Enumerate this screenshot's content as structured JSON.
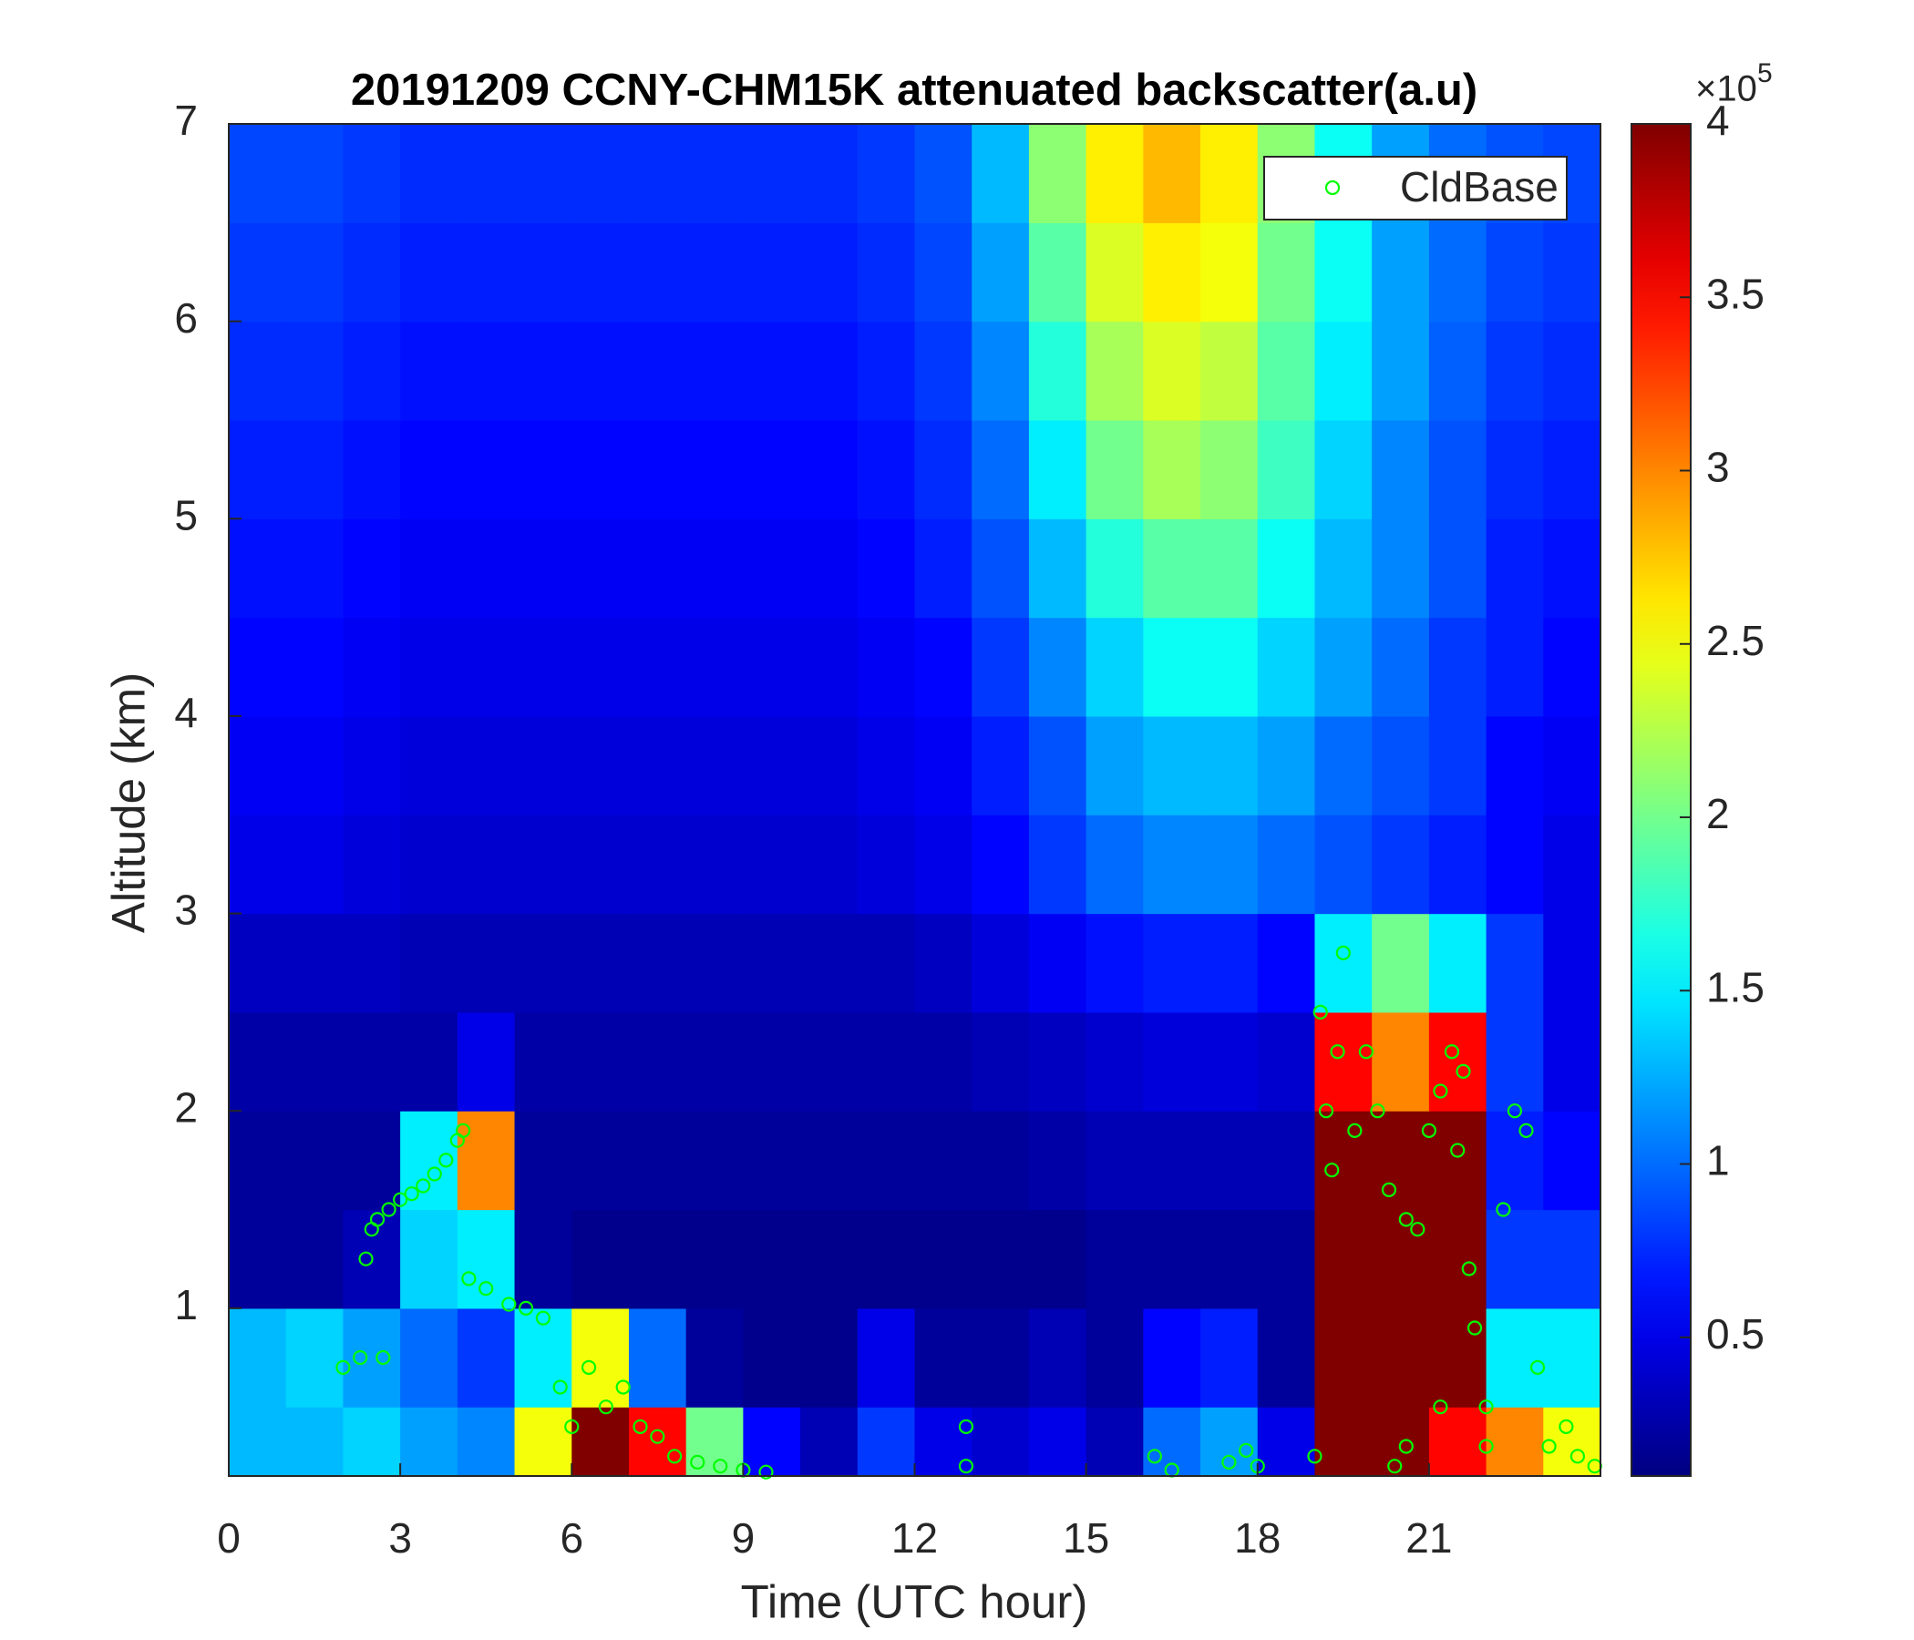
{
  "chart_data": {
    "type": "heatmap",
    "title": "20191209 CCNY-CHM15K attenuated backscatter(a.u)",
    "xlabel": "Time (UTC hour)",
    "ylabel": "Altitude (km)",
    "xlim": [
      0,
      24
    ],
    "xticks": [
      0,
      3,
      6,
      9,
      12,
      15,
      18,
      21
    ],
    "ylim": [
      0.15,
      7
    ],
    "yticks": [
      1,
      2,
      3,
      4,
      5,
      6,
      7
    ],
    "colormap": "jet",
    "clim": [
      0.1,
      4
    ],
    "cticks": [
      0.5,
      1,
      1.5,
      2,
      2.5,
      3,
      3.5,
      4
    ],
    "colorbar_multiplier": {
      "base": "×10",
      "exponent": "5"
    },
    "x_edges": [
      0,
      1,
      2,
      3,
      4,
      5,
      6,
      7,
      8,
      9,
      10,
      11,
      12,
      13,
      14,
      15,
      16,
      17,
      18,
      19,
      20,
      21,
      22,
      23,
      24
    ],
    "y_edges": [
      0.15,
      0.5,
      1,
      1.5,
      2,
      2.5,
      3,
      3.5,
      4,
      4.5,
      5,
      5.5,
      6,
      6.5,
      7
    ],
    "z": [
      [
        1.3,
        1.3,
        1.4,
        1.2,
        1.1,
        2.5,
        4,
        3.5,
        2,
        0.6,
        0.3,
        0.8,
        0.5,
        0.4,
        0.5,
        0.3,
        1,
        1.2,
        0.5,
        4,
        4,
        3.5,
        3,
        2.5
      ],
      [
        1.3,
        1.4,
        1.2,
        1,
        0.8,
        1.5,
        2.5,
        1,
        0.2,
        0.15,
        0.15,
        0.5,
        0.2,
        0.2,
        0.3,
        0.2,
        0.6,
        0.7,
        0.2,
        4,
        4,
        4,
        1.5,
        1.5
      ],
      [
        0.2,
        0.2,
        0.3,
        1.4,
        1.5,
        0.2,
        0.15,
        0.15,
        0.15,
        0.15,
        0.15,
        0.15,
        0.15,
        0.15,
        0.15,
        0.2,
        0.2,
        0.2,
        0.2,
        4,
        4,
        4,
        0.8,
        0.8
      ],
      [
        0.2,
        0.2,
        0.2,
        1.5,
        3,
        0.2,
        0.2,
        0.2,
        0.2,
        0.2,
        0.2,
        0.2,
        0.2,
        0.2,
        0.25,
        0.3,
        0.3,
        0.3,
        0.3,
        4,
        4,
        4,
        0.7,
        0.6
      ],
      [
        0.25,
        0.25,
        0.25,
        0.25,
        0.5,
        0.25,
        0.25,
        0.25,
        0.25,
        0.25,
        0.25,
        0.25,
        0.25,
        0.3,
        0.35,
        0.4,
        0.45,
        0.45,
        0.4,
        3.5,
        3,
        3.5,
        0.8,
        0.5
      ],
      [
        0.35,
        0.35,
        0.35,
        0.3,
        0.3,
        0.3,
        0.3,
        0.3,
        0.3,
        0.3,
        0.3,
        0.3,
        0.35,
        0.45,
        0.55,
        0.65,
        0.7,
        0.7,
        0.6,
        1.5,
        2,
        1.5,
        0.8,
        0.5
      ],
      [
        0.5,
        0.5,
        0.45,
        0.4,
        0.4,
        0.4,
        0.4,
        0.4,
        0.4,
        0.4,
        0.4,
        0.45,
        0.5,
        0.6,
        0.8,
        1,
        1.1,
        1.1,
        1,
        0.9,
        0.8,
        0.7,
        0.6,
        0.5
      ],
      [
        0.55,
        0.55,
        0.5,
        0.45,
        0.45,
        0.45,
        0.45,
        0.45,
        0.45,
        0.45,
        0.45,
        0.5,
        0.55,
        0.7,
        0.9,
        1.2,
        1.3,
        1.3,
        1.2,
        1,
        0.9,
        0.8,
        0.6,
        0.55
      ],
      [
        0.6,
        0.6,
        0.55,
        0.5,
        0.5,
        0.5,
        0.5,
        0.5,
        0.5,
        0.5,
        0.5,
        0.55,
        0.6,
        0.8,
        1.1,
        1.4,
        1.6,
        1.6,
        1.4,
        1.2,
        1,
        0.8,
        0.7,
        0.6
      ],
      [
        0.65,
        0.65,
        0.6,
        0.55,
        0.55,
        0.55,
        0.55,
        0.55,
        0.55,
        0.55,
        0.55,
        0.6,
        0.7,
        0.9,
        1.3,
        1.7,
        1.9,
        1.9,
        1.6,
        1.3,
        1.1,
        0.9,
        0.7,
        0.65
      ],
      [
        0.7,
        0.7,
        0.65,
        0.6,
        0.6,
        0.6,
        0.6,
        0.6,
        0.6,
        0.6,
        0.6,
        0.65,
        0.75,
        1,
        1.5,
        2,
        2.2,
        2.1,
        1.8,
        1.4,
        1.1,
        0.9,
        0.75,
        0.7
      ],
      [
        0.75,
        0.75,
        0.7,
        0.65,
        0.65,
        0.65,
        0.65,
        0.65,
        0.65,
        0.65,
        0.65,
        0.7,
        0.8,
        1.1,
        1.7,
        2.2,
        2.4,
        2.3,
        1.9,
        1.5,
        1.2,
        0.95,
        0.8,
        0.75
      ],
      [
        0.8,
        0.8,
        0.75,
        0.7,
        0.7,
        0.7,
        0.7,
        0.7,
        0.7,
        0.7,
        0.7,
        0.75,
        0.85,
        1.2,
        1.9,
        2.4,
        2.6,
        2.5,
        2,
        1.6,
        1.2,
        1,
        0.85,
        0.8
      ],
      [
        0.85,
        0.85,
        0.8,
        0.75,
        0.75,
        0.75,
        0.75,
        0.75,
        0.75,
        0.75,
        0.75,
        0.8,
        0.9,
        1.3,
        2.1,
        2.6,
        2.8,
        2.6,
        2.1,
        1.6,
        1.2,
        1,
        0.9,
        0.85
      ]
    ],
    "legend": "northeast",
    "series": [
      {
        "name": "CldBase",
        "color": "#00ff00",
        "marker": "circle",
        "x": [
          2.4,
          2.5,
          2.6,
          2.8,
          3.0,
          3.2,
          3.4,
          3.6,
          3.8,
          4.0,
          4.1,
          4.2,
          4.5,
          4.9,
          5.2,
          5.5,
          5.8,
          6.0,
          6.3,
          6.6,
          6.9,
          7.2,
          7.5,
          7.8,
          8.2,
          8.6,
          9.0,
          9.4,
          2.0,
          2.3,
          2.7,
          12.9,
          12.9,
          16.2,
          16.5,
          17.5,
          17.8,
          18.0,
          19.0,
          19.1,
          19.2,
          19.3,
          19.4,
          19.5,
          19.7,
          19.9,
          20.1,
          20.3,
          20.6,
          20.8,
          21.0,
          21.2,
          21.4,
          21.6,
          21.5,
          21.7,
          21.8,
          22.0,
          22.0,
          22.3,
          22.5,
          22.7,
          22.9,
          23.1,
          23.4,
          23.6,
          23.9,
          20.4,
          20.6,
          21.2
        ],
        "values": [
          1.25,
          1.4,
          1.45,
          1.5,
          1.55,
          1.58,
          1.62,
          1.68,
          1.75,
          1.85,
          1.9,
          1.15,
          1.1,
          1.02,
          1.0,
          0.95,
          0.6,
          0.4,
          0.7,
          0.5,
          0.6,
          0.4,
          0.35,
          0.25,
          0.22,
          0.2,
          0.18,
          0.17,
          0.7,
          0.75,
          0.75,
          0.4,
          0.2,
          0.25,
          0.18,
          0.22,
          0.28,
          0.2,
          0.25,
          2.5,
          2.0,
          1.7,
          2.3,
          2.8,
          1.9,
          2.3,
          2.0,
          1.6,
          1.45,
          1.4,
          1.9,
          2.1,
          2.3,
          2.2,
          1.8,
          1.2,
          0.9,
          0.5,
          0.3,
          1.5,
          2.0,
          1.9,
          0.7,
          0.3,
          0.4,
          0.25,
          0.2,
          0.2,
          0.3,
          0.5
        ]
      }
    ]
  }
}
